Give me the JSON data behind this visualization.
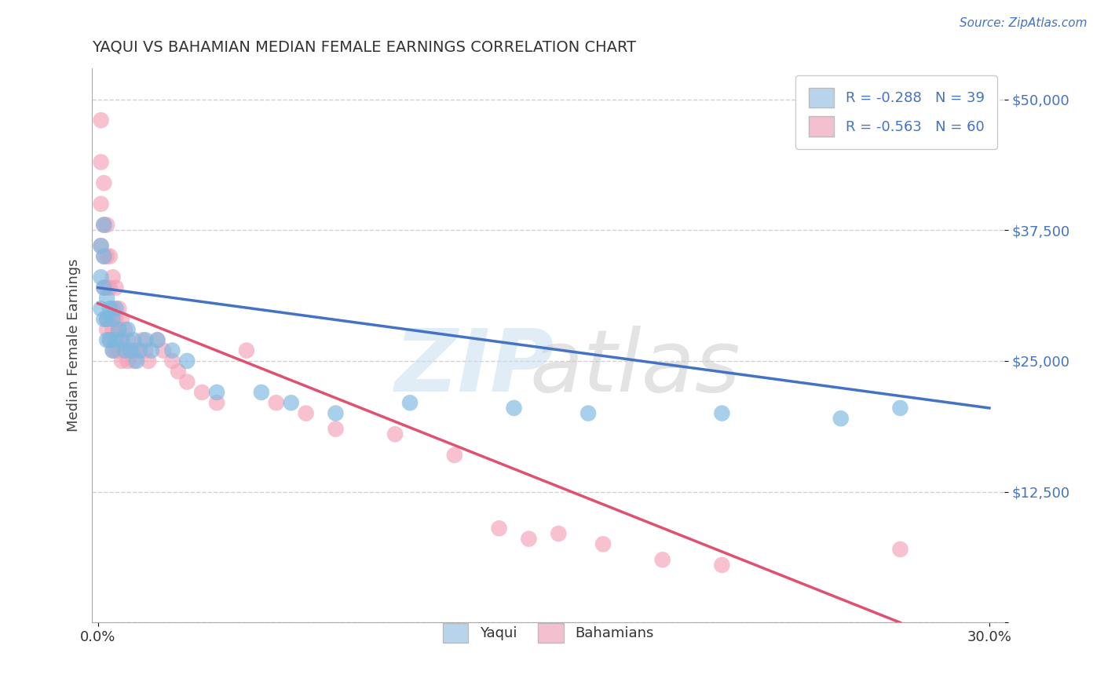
{
  "title": "YAQUI VS BAHAMIAN MEDIAN FEMALE EARNINGS CORRELATION CHART",
  "source": "Source: ZipAtlas.com",
  "ylabel_label": "Median Female Earnings",
  "xlim": [
    -0.002,
    0.305
  ],
  "ylim": [
    0,
    53000
  ],
  "yticks": [
    0,
    12500,
    25000,
    37500,
    50000
  ],
  "yticklabels": [
    "",
    "$12,500",
    "$25,000",
    "$37,500",
    "$50,000"
  ],
  "yaqui_R": -0.288,
  "yaqui_N": 39,
  "bahamian_R": -0.563,
  "bahamian_N": 60,
  "yaqui_color": "#7ab8e0",
  "bahamian_color": "#f4a0b8",
  "yaqui_line_color": "#4472c4",
  "bahamian_line_color": "#e05070",
  "legend_yaqui_face": "#b8d4ed",
  "legend_bahamian_face": "#f4c0d0",
  "title_color": "#333333",
  "source_color": "#4472c4",
  "yaqui_line_x0": 0.0,
  "yaqui_line_y0": 32000,
  "yaqui_line_x1": 0.3,
  "yaqui_line_y1": 20500,
  "bahamian_line_x0": 0.0,
  "bahamian_line_y0": 30500,
  "bahamian_line_x1": 0.27,
  "bahamian_line_y1": 0,
  "yaqui_scatter_x": [
    0.001,
    0.001,
    0.001,
    0.002,
    0.002,
    0.002,
    0.002,
    0.003,
    0.003,
    0.003,
    0.004,
    0.004,
    0.005,
    0.005,
    0.006,
    0.006,
    0.007,
    0.008,
    0.009,
    0.01,
    0.011,
    0.012,
    0.013,
    0.014,
    0.016,
    0.018,
    0.02,
    0.025,
    0.03,
    0.04,
    0.055,
    0.065,
    0.08,
    0.105,
    0.14,
    0.165,
    0.21,
    0.25,
    0.27
  ],
  "yaqui_scatter_y": [
    36000,
    33000,
    30000,
    38000,
    35000,
    32000,
    29000,
    31000,
    29000,
    27000,
    30000,
    27000,
    29000,
    26000,
    30000,
    27000,
    28000,
    27000,
    26000,
    28000,
    26000,
    27000,
    25000,
    26000,
    27000,
    26000,
    27000,
    26000,
    25000,
    22000,
    22000,
    21000,
    20000,
    21000,
    20500,
    20000,
    20000,
    19500,
    20500
  ],
  "bahamian_scatter_x": [
    0.001,
    0.001,
    0.001,
    0.001,
    0.002,
    0.002,
    0.002,
    0.002,
    0.003,
    0.003,
    0.003,
    0.003,
    0.003,
    0.004,
    0.004,
    0.004,
    0.004,
    0.005,
    0.005,
    0.005,
    0.005,
    0.006,
    0.006,
    0.006,
    0.007,
    0.007,
    0.007,
    0.008,
    0.008,
    0.008,
    0.009,
    0.009,
    0.01,
    0.01,
    0.011,
    0.012,
    0.013,
    0.015,
    0.016,
    0.017,
    0.02,
    0.022,
    0.025,
    0.027,
    0.03,
    0.035,
    0.04,
    0.05,
    0.06,
    0.07,
    0.08,
    0.1,
    0.12,
    0.135,
    0.145,
    0.155,
    0.17,
    0.19,
    0.21,
    0.27
  ],
  "bahamian_scatter_y": [
    48000,
    44000,
    40000,
    36000,
    42000,
    38000,
    35000,
    32000,
    38000,
    35000,
    32000,
    29000,
    28000,
    35000,
    32000,
    29000,
    27000,
    33000,
    30000,
    28000,
    26000,
    32000,
    29000,
    26000,
    30000,
    28000,
    26000,
    29000,
    27000,
    25000,
    28000,
    26000,
    27000,
    25000,
    26000,
    25000,
    26000,
    27000,
    26000,
    25000,
    27000,
    26000,
    25000,
    24000,
    23000,
    22000,
    21000,
    26000,
    21000,
    20000,
    18500,
    18000,
    16000,
    9000,
    8000,
    8500,
    7500,
    6000,
    5500,
    7000
  ]
}
